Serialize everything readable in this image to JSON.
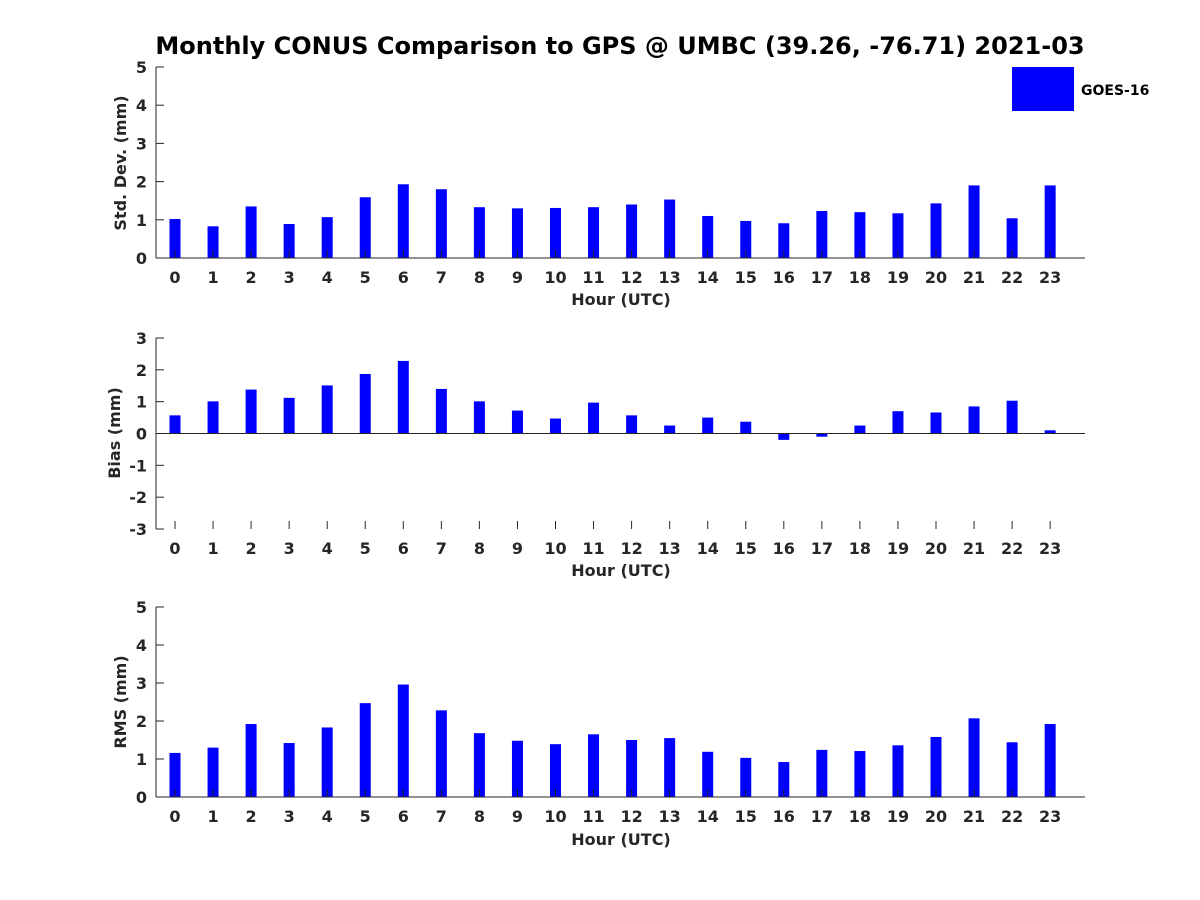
{
  "title": "Monthly CONUS Comparison to GPS @ UMBC (39.26, -76.71) 2021-03",
  "legend": {
    "label": "GOES-16",
    "placement": "top-right"
  },
  "colors": {
    "bar": "#0000ff",
    "axis": "#262626"
  },
  "chart_data": [
    {
      "type": "bar",
      "categories": [
        "0",
        "1",
        "2",
        "3",
        "4",
        "5",
        "6",
        "7",
        "8",
        "9",
        "10",
        "11",
        "12",
        "13",
        "14",
        "15",
        "16",
        "17",
        "18",
        "19",
        "20",
        "21",
        "22",
        "23"
      ],
      "series": [
        {
          "name": "GOES-16",
          "values": [
            1.02,
            0.83,
            1.35,
            0.89,
            1.07,
            1.59,
            1.93,
            1.8,
            1.33,
            1.3,
            1.31,
            1.33,
            1.4,
            1.53,
            1.1,
            0.97,
            0.91,
            1.23,
            1.2,
            1.17,
            1.43,
            1.9,
            1.04,
            1.9
          ]
        }
      ],
      "xlabel": "Hour (UTC)",
      "ylabel": "Std. Dev. (mm)",
      "ylim": [
        0,
        5
      ],
      "yticks": [
        "0",
        "1",
        "2",
        "3",
        "4",
        "5"
      ],
      "grid": false
    },
    {
      "type": "bar",
      "categories": [
        "0",
        "1",
        "2",
        "3",
        "4",
        "5",
        "6",
        "7",
        "8",
        "9",
        "10",
        "11",
        "12",
        "13",
        "14",
        "15",
        "16",
        "17",
        "18",
        "19",
        "20",
        "21",
        "22",
        "23"
      ],
      "series": [
        {
          "name": "GOES-16",
          "values": [
            0.57,
            1.01,
            1.38,
            1.12,
            1.51,
            1.87,
            2.28,
            1.4,
            1.01,
            0.72,
            0.47,
            0.97,
            0.57,
            0.25,
            0.5,
            0.37,
            -0.2,
            -0.1,
            0.25,
            0.7,
            0.66,
            0.85,
            1.03,
            0.1
          ]
        }
      ],
      "xlabel": "Hour (UTC)",
      "ylabel": "Bias (mm)",
      "ylim": [
        -3,
        3
      ],
      "yticks": [
        "-3",
        "-2",
        "-1",
        "0",
        "1",
        "2",
        "3"
      ],
      "grid": false
    },
    {
      "type": "bar",
      "categories": [
        "0",
        "1",
        "2",
        "3",
        "4",
        "5",
        "6",
        "7",
        "8",
        "9",
        "10",
        "11",
        "12",
        "13",
        "14",
        "15",
        "16",
        "17",
        "18",
        "19",
        "20",
        "21",
        "22",
        "23"
      ],
      "series": [
        {
          "name": "GOES-16",
          "values": [
            1.16,
            1.3,
            1.92,
            1.42,
            1.83,
            2.47,
            2.96,
            2.28,
            1.68,
            1.48,
            1.39,
            1.65,
            1.5,
            1.55,
            1.19,
            1.03,
            0.92,
            1.24,
            1.21,
            1.36,
            1.58,
            2.07,
            1.44,
            1.92
          ]
        }
      ],
      "xlabel": "Hour (UTC)",
      "ylabel": "RMS (mm)",
      "ylim": [
        0,
        5
      ],
      "yticks": [
        "0",
        "1",
        "2",
        "3",
        "4",
        "5"
      ],
      "grid": false
    }
  ]
}
